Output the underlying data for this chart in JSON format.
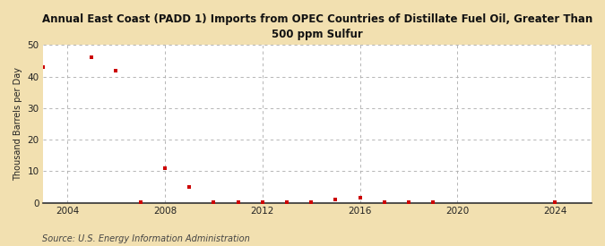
{
  "title": "Annual East Coast (PADD 1) Imports from OPEC Countries of Distillate Fuel Oil, Greater Than\n500 ppm Sulfur",
  "ylabel": "Thousand Barrels per Day",
  "source": "Source: U.S. Energy Information Administration",
  "background_color": "#f2e0b0",
  "plot_background_color": "#ffffff",
  "marker_color": "#cc0000",
  "marker": "s",
  "marker_size": 3.5,
  "xlim": [
    2003,
    2025.5
  ],
  "ylim": [
    0,
    50
  ],
  "yticks": [
    0,
    10,
    20,
    30,
    40,
    50
  ],
  "xticks": [
    2004,
    2008,
    2012,
    2016,
    2020,
    2024
  ],
  "grid_color": "#aaaaaa",
  "data": {
    "years": [
      2003,
      2005,
      2006,
      2007,
      2008,
      2009,
      2010,
      2011,
      2012,
      2013,
      2014,
      2015,
      2016,
      2017,
      2018,
      2019,
      2024
    ],
    "values": [
      43,
      46,
      42,
      0.3,
      11,
      5,
      0.2,
      0.3,
      0.3,
      0.3,
      0.3,
      1.0,
      1.5,
      0.3,
      0.3,
      0.3,
      0.3
    ]
  }
}
